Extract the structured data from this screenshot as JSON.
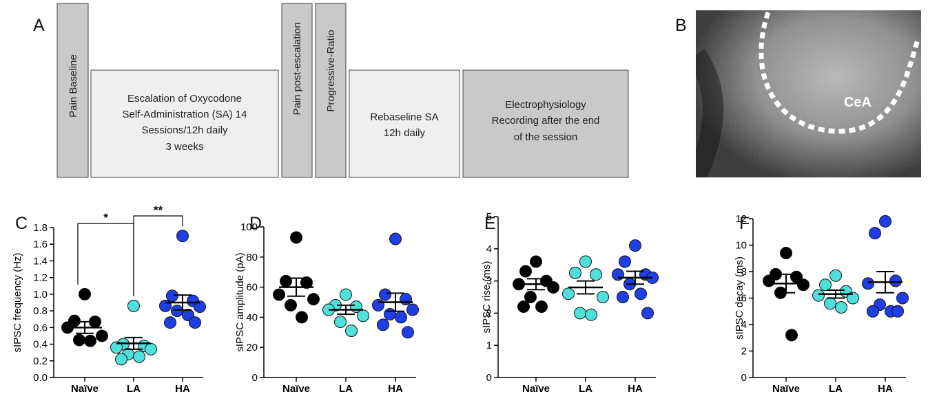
{
  "timeline": {
    "panel_label": "A",
    "steps": [
      {
        "lines": [
          "Pain Baseline"
        ]
      },
      {
        "lines": [
          "Escalation of Oxycodone",
          "Self-Administration (SA) 14",
          "Sessions/12h daily",
          "3 weeks"
        ]
      },
      {
        "lines": [
          "Pain post-escalation"
        ]
      },
      {
        "lines": [
          "Progressive-Ratio"
        ]
      },
      {
        "lines": [
          "Rebaseline SA",
          "12h daily"
        ]
      },
      {
        "lines": [
          "Electrophysiology",
          "Recording after the end",
          "of the session"
        ]
      }
    ]
  },
  "image": {
    "panel_label": "B",
    "label": "CeA"
  },
  "chart_data": [
    {
      "type": "strip",
      "panel_label": "C",
      "ylabel": "sIPSC frequency (Hz)",
      "categories": [
        "Naïve",
        "LA",
        "HA"
      ],
      "ylim": [
        0,
        1.8
      ],
      "yticks": [
        {
          "value": 0,
          "label": "0.0"
        },
        0.2,
        0.4,
        0.6,
        0.8,
        {
          "value": 1,
          "label": "1.0"
        },
        1.2,
        1.4,
        1.6,
        1.8
      ],
      "annotations": [
        "*",
        "**"
      ],
      "series": [
        {
          "color": "#000000",
          "values": [
            1.0,
            0.68,
            0.67,
            0.6,
            0.5,
            0.45,
            0.44
          ],
          "mean": 0.6,
          "sem": 0.07
        },
        {
          "color": "#4fe0dc",
          "values": [
            0.86,
            0.4,
            0.38,
            0.36,
            0.34,
            0.28,
            0.25,
            0.22
          ],
          "mean": 0.41,
          "sem": 0.07
        },
        {
          "color": "#1f3fe6",
          "values": [
            1.7,
            0.98,
            0.92,
            0.86,
            0.85,
            0.8,
            0.75,
            0.66,
            0.66
          ],
          "mean": 0.9,
          "sem": 0.09
        }
      ]
    },
    {
      "type": "strip",
      "panel_label": "D",
      "ylabel": "sIPSC amplitude (pA)",
      "categories": [
        "Naïve",
        "LA",
        "HA"
      ],
      "ylim": [
        0,
        100
      ],
      "yticks": [
        0,
        20,
        40,
        60,
        80,
        100
      ],
      "series": [
        {
          "color": "#000000",
          "values": [
            93,
            64,
            63,
            55,
            52,
            48,
            40
          ],
          "mean": 60,
          "sem": 6
        },
        {
          "color": "#4fe0dc",
          "values": [
            55,
            48,
            47,
            45,
            41,
            37,
            31
          ],
          "mean": 45,
          "sem": 3
        },
        {
          "color": "#1f3fe6",
          "values": [
            92,
            55,
            52,
            48,
            45,
            42,
            40,
            35,
            30
          ],
          "mean": 50,
          "sem": 6
        }
      ]
    },
    {
      "type": "strip",
      "panel_label": "E",
      "ylabel": "sIPSC rise (ms)",
      "categories": [
        "Naïve",
        "LA",
        "HA"
      ],
      "ylim": [
        0,
        5
      ],
      "yticks": [
        0,
        1,
        2,
        3,
        4,
        5
      ],
      "series": [
        {
          "color": "#000000",
          "values": [
            3.6,
            3.3,
            3.0,
            2.9,
            2.8,
            2.5,
            2.2,
            2.2
          ],
          "mean": 2.9,
          "sem": 0.17
        },
        {
          "color": "#4fe0dc",
          "values": [
            3.6,
            3.25,
            3.2,
            2.6,
            2.5,
            2.0,
            1.95
          ],
          "mean": 2.8,
          "sem": 0.2
        },
        {
          "color": "#1f3fe6",
          "values": [
            4.1,
            3.6,
            3.2,
            3.2,
            3.1,
            2.9,
            2.6,
            2.5,
            2.0
          ],
          "mean": 3.1,
          "sem": 0.2
        }
      ]
    },
    {
      "type": "strip",
      "panel_label": "F",
      "ylabel": "sIPSC decay (ms)",
      "categories": [
        "Naïve",
        "LA",
        "HA"
      ],
      "ylim": [
        0,
        12
      ],
      "yticks": [
        0,
        2,
        4,
        6,
        8,
        10,
        12
      ],
      "series": [
        {
          "color": "#000000",
          "values": [
            9.4,
            7.8,
            7.6,
            7.3,
            7.0,
            6.4,
            3.2
          ],
          "mean": 7.1,
          "sem": 0.7
        },
        {
          "color": "#4fe0dc",
          "values": [
            7.7,
            7.0,
            6.5,
            6.2,
            6.0,
            5.6,
            5.3
          ],
          "mean": 6.3,
          "sem": 0.3
        },
        {
          "color": "#1f3fe6",
          "values": [
            11.8,
            10.9,
            7.3,
            7.1,
            6.0,
            5.5,
            5.0,
            5.0,
            5.0
          ],
          "mean": 7.2,
          "sem": 0.8
        }
      ]
    }
  ]
}
